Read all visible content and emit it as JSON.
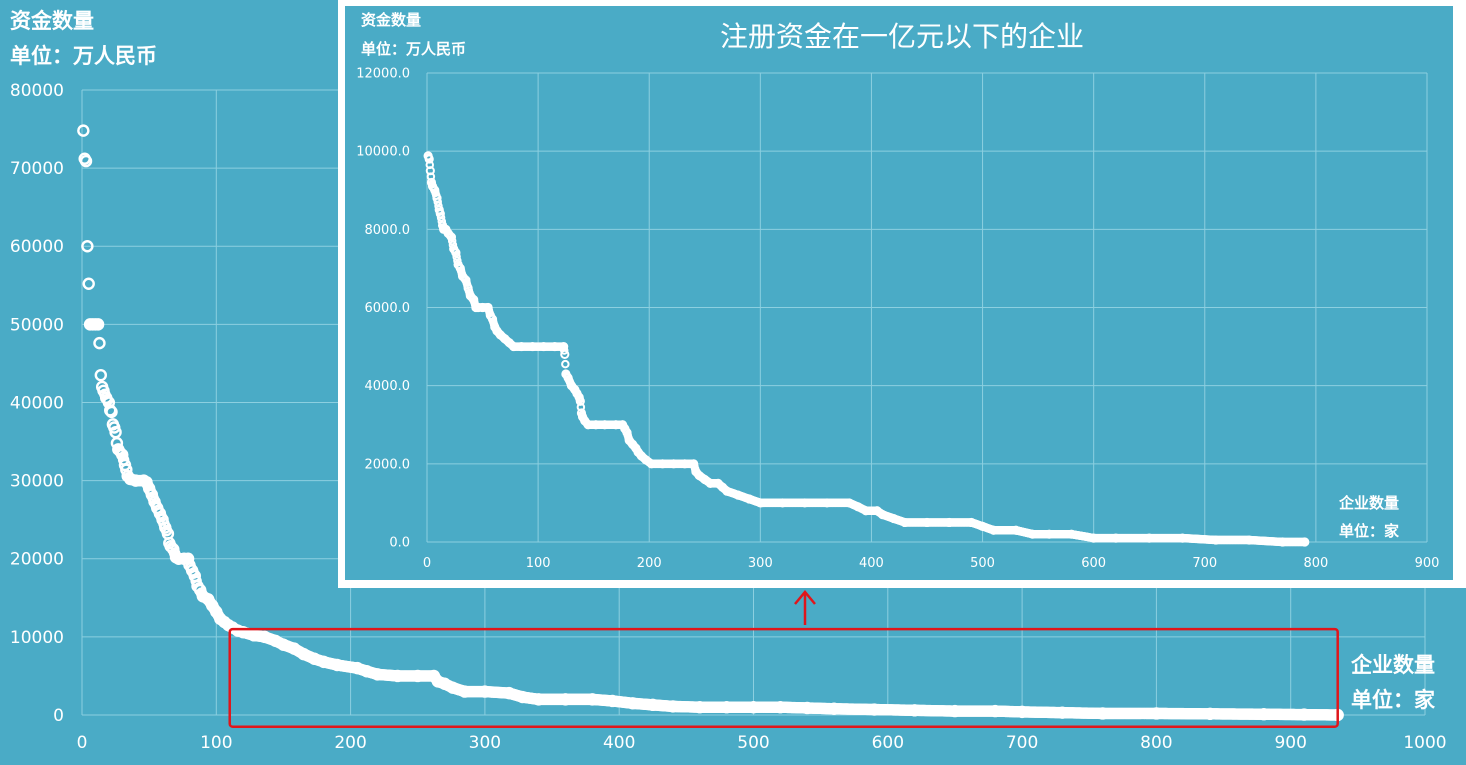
{
  "main_chart": {
    "ylabel_line1": "资金数量",
    "ylabel_line2": "单位：万人民币",
    "xlabel_line1": "企业数量",
    "xlabel_line2": "单位：家",
    "x_ticks": [
      "0",
      "100",
      "200",
      "300",
      "400",
      "500",
      "600",
      "700",
      "800",
      "900",
      "1000"
    ],
    "y_ticks": [
      "0",
      "10000",
      "20000",
      "30000",
      "40000",
      "50000",
      "60000",
      "70000",
      "80000"
    ]
  },
  "inset_chart": {
    "title": "注册资金在一亿元以下的企业",
    "ylabel_line1": "资金数量",
    "ylabel_line2": "单位：万人民币",
    "xlabel_line1": "企业数量",
    "xlabel_line2": "单位：家",
    "x_ticks": [
      "0",
      "100",
      "200",
      "300",
      "400",
      "500",
      "600",
      "700",
      "800",
      "900"
    ],
    "y_ticks": [
      "0.0",
      "2000.0",
      "4000.0",
      "6000.0",
      "8000.0",
      "10000.0",
      "12000.0"
    ]
  },
  "colors": {
    "background": "#4aabc6",
    "marker": "#ffffff",
    "highlight": "#e0161b",
    "grid": "#8ccfe0"
  },
  "chart_data": [
    {
      "type": "scatter",
      "ylabel": "资金数量 单位：万人民币",
      "xlabel": "企业数量 单位：家",
      "xlim": [
        0,
        1000
      ],
      "ylim": [
        0,
        80000
      ],
      "grid": true,
      "highlight_region": {
        "x": [
          110,
          935
        ],
        "y": [
          -1500,
          11000
        ]
      },
      "series": [
        {
          "values": [
            [
              1,
              74800
            ],
            [
              2,
              71200
            ],
            [
              3,
              70900
            ],
            [
              4,
              60000
            ],
            [
              5,
              55200
            ],
            [
              6,
              50000
            ],
            [
              8,
              50000
            ],
            [
              10,
              50000
            ],
            [
              12,
              50000
            ],
            [
              13,
              47600
            ],
            [
              14,
              43500
            ],
            [
              15,
              42000
            ],
            [
              16,
              41500
            ],
            [
              18,
              40600
            ],
            [
              20,
              40000
            ],
            [
              21,
              39000
            ],
            [
              22,
              38800
            ],
            [
              23,
              37200
            ],
            [
              24,
              36800
            ],
            [
              25,
              36200
            ],
            [
              26,
              34800
            ],
            [
              27,
              34000
            ],
            [
              30,
              33300
            ],
            [
              32,
              32000
            ],
            [
              33,
              31400
            ],
            [
              34,
              30600
            ],
            [
              36,
              30200
            ],
            [
              40,
              30000
            ],
            [
              46,
              30000
            ],
            [
              48,
              29800
            ],
            [
              50,
              29000
            ],
            [
              52,
              28200
            ],
            [
              54,
              27300
            ],
            [
              56,
              26500
            ],
            [
              58,
              25800
            ],
            [
              60,
              25000
            ],
            [
              62,
              24000
            ],
            [
              64,
              23200
            ],
            [
              65,
              22000
            ],
            [
              66,
              21600
            ],
            [
              68,
              21200
            ],
            [
              70,
              20200
            ],
            [
              72,
              20000
            ],
            [
              76,
              20000
            ],
            [
              79,
              20000
            ],
            [
              80,
              19200
            ],
            [
              82,
              18500
            ],
            [
              84,
              17800
            ],
            [
              86,
              16500
            ],
            [
              88,
              16000
            ],
            [
              90,
              15200
            ],
            [
              94,
              14800
            ],
            [
              97,
              14000
            ],
            [
              100,
              13200
            ],
            [
              103,
              12300
            ],
            [
              106,
              11900
            ],
            [
              109,
              11500
            ],
            [
              112,
              11200
            ],
            [
              116,
              10800
            ],
            [
              120,
              10600
            ],
            [
              128,
              10200
            ],
            [
              136,
              10000
            ],
            [
              144,
              9500
            ],
            [
              150,
              9000
            ],
            [
              158,
              8500
            ],
            [
              165,
              7800
            ],
            [
              173,
              7200
            ],
            [
              180,
              6800
            ],
            [
              190,
              6400
            ],
            [
              205,
              6000
            ],
            [
              212,
              5600
            ],
            [
              220,
              5200
            ],
            [
              235,
              5000
            ],
            [
              250,
              5000
            ],
            [
              262,
              5000
            ],
            [
              265,
              4300
            ],
            [
              270,
              4000
            ],
            [
              276,
              3500
            ],
            [
              285,
              3000
            ],
            [
              300,
              3000
            ],
            [
              318,
              2800
            ],
            [
              328,
              2300
            ],
            [
              340,
              2000
            ],
            [
              360,
              2000
            ],
            [
              380,
              2000
            ],
            [
              395,
              1800
            ],
            [
              410,
              1500
            ],
            [
              425,
              1300
            ],
            [
              440,
              1100
            ],
            [
              460,
              1000
            ],
            [
              480,
              1000
            ],
            [
              500,
              1000
            ],
            [
              520,
              1000
            ],
            [
              540,
              900
            ],
            [
              560,
              800
            ],
            [
              590,
              700
            ],
            [
              620,
              600
            ],
            [
              650,
              500
            ],
            [
              680,
              500
            ],
            [
              700,
              400
            ],
            [
              730,
              300
            ],
            [
              760,
              200
            ],
            [
              800,
              200
            ],
            [
              840,
              150
            ],
            [
              880,
              100
            ],
            [
              910,
              50
            ],
            [
              935,
              0
            ]
          ]
        }
      ]
    },
    {
      "type": "scatter",
      "title": "注册资金在一亿元以下的企业",
      "ylabel": "资金数量 单位：万人民币",
      "xlabel": "企业数量 单位：家",
      "xlim": [
        0,
        900
      ],
      "ylim": [
        0,
        12000
      ],
      "grid": true,
      "series": [
        {
          "values": [
            [
              1,
              9880
            ],
            [
              2,
              9800
            ],
            [
              3,
              9500
            ],
            [
              4,
              9200
            ],
            [
              5,
              9100
            ],
            [
              7,
              9000
            ],
            [
              9,
              8800
            ],
            [
              11,
              8500
            ],
            [
              12,
              8400
            ],
            [
              14,
              8100
            ],
            [
              15,
              8000
            ],
            [
              17,
              8000
            ],
            [
              19,
              7900
            ],
            [
              22,
              7800
            ],
            [
              24,
              7500
            ],
            [
              26,
              7400
            ],
            [
              28,
              7100
            ],
            [
              30,
              7000
            ],
            [
              32,
              6800
            ],
            [
              35,
              6700
            ],
            [
              37,
              6500
            ],
            [
              39,
              6300
            ],
            [
              42,
              6200
            ],
            [
              44,
              6000
            ],
            [
              46,
              6000
            ],
            [
              50,
              6000
            ],
            [
              55,
              6000
            ],
            [
              57,
              5800
            ],
            [
              59,
              5700
            ],
            [
              61,
              5500
            ],
            [
              63,
              5400
            ],
            [
              66,
              5300
            ],
            [
              70,
              5200
            ],
            [
              74,
              5100
            ],
            [
              78,
              5000
            ],
            [
              85,
              5000
            ],
            [
              95,
              5000
            ],
            [
              105,
              5000
            ],
            [
              115,
              5000
            ],
            [
              123,
              5000
            ],
            [
              124,
              4800
            ],
            [
              125,
              4300
            ],
            [
              127,
              4200
            ],
            [
              130,
              4000
            ],
            [
              133,
              3900
            ],
            [
              135,
              3800
            ],
            [
              137,
              3700
            ],
            [
              138,
              3600
            ],
            [
              139,
              3300
            ],
            [
              140,
              3200
            ],
            [
              142,
              3100
            ],
            [
              145,
              3000
            ],
            [
              152,
              3000
            ],
            [
              160,
              3000
            ],
            [
              170,
              3000
            ],
            [
              176,
              3000
            ],
            [
              178,
              2900
            ],
            [
              180,
              2800
            ],
            [
              182,
              2600
            ],
            [
              185,
              2500
            ],
            [
              188,
              2400
            ],
            [
              190,
              2300
            ],
            [
              193,
              2200
            ],
            [
              197,
              2100
            ],
            [
              202,
              2000
            ],
            [
              212,
              2000
            ],
            [
              222,
              2000
            ],
            [
              232,
              2000
            ],
            [
              240,
              2000
            ],
            [
              242,
              1800
            ],
            [
              245,
              1700
            ],
            [
              250,
              1600
            ],
            [
              255,
              1500
            ],
            [
              262,
              1500
            ],
            [
              266,
              1400
            ],
            [
              270,
              1300
            ],
            [
              280,
              1200
            ],
            [
              290,
              1100
            ],
            [
              300,
              1000
            ],
            [
              320,
              1000
            ],
            [
              340,
              1000
            ],
            [
              360,
              1000
            ],
            [
              380,
              1000
            ],
            [
              388,
              900
            ],
            [
              395,
              800
            ],
            [
              405,
              800
            ],
            [
              410,
              700
            ],
            [
              420,
              600
            ],
            [
              430,
              500
            ],
            [
              450,
              500
            ],
            [
              470,
              500
            ],
            [
              490,
              500
            ],
            [
              500,
              400
            ],
            [
              510,
              300
            ],
            [
              530,
              300
            ],
            [
              545,
              200
            ],
            [
              560,
              200
            ],
            [
              580,
              200
            ],
            [
              600,
              100
            ],
            [
              620,
              100
            ],
            [
              650,
              100
            ],
            [
              680,
              100
            ],
            [
              710,
              50
            ],
            [
              740,
              50
            ],
            [
              770,
              0
            ],
            [
              790,
              0
            ]
          ]
        }
      ]
    }
  ]
}
